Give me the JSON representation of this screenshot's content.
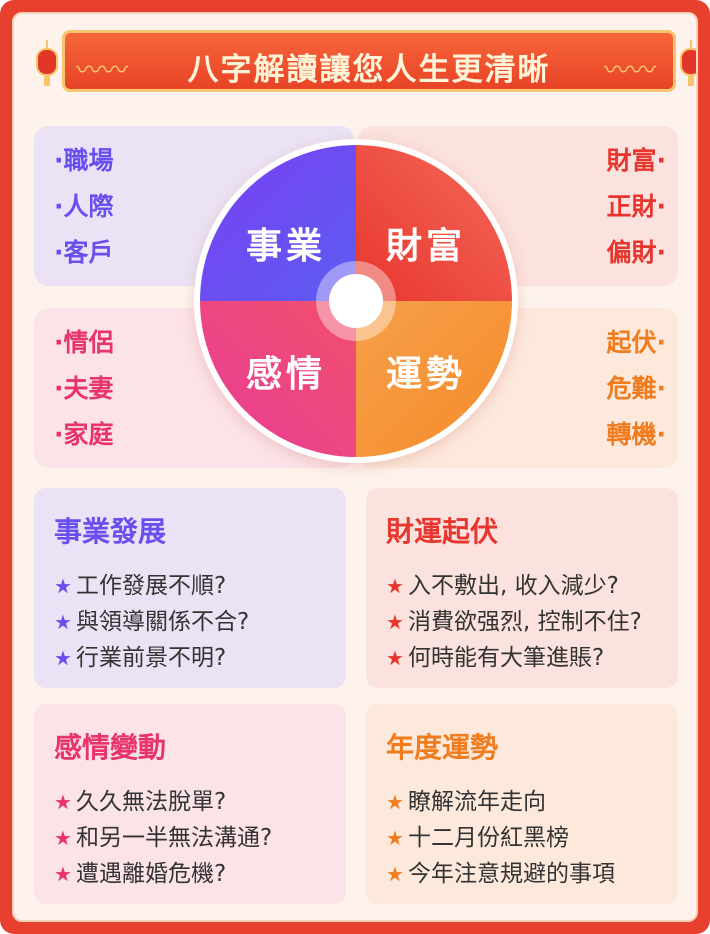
{
  "banner": {
    "title": "八字解讀讓您人生更清晰"
  },
  "left_top_list": [
    "·職場",
    "·人際",
    "·客戶"
  ],
  "right_top_list": [
    "財富·",
    "正財·",
    "偏財·"
  ],
  "left_bottom_list": [
    "·情侶",
    "·夫妻",
    "·家庭"
  ],
  "right_bottom_list": [
    "起伏·",
    "危難·",
    "轉機·"
  ],
  "wheel": {
    "q1": "事業",
    "q2": "財富",
    "q3": "感情",
    "q4": "運勢"
  },
  "cards": {
    "career": {
      "title": "事業發展",
      "items": [
        "工作發展不順?",
        "與領導關係不合?",
        "行業前景不明?"
      ]
    },
    "wealth": {
      "title": "財運起伏",
      "items": [
        "入不敷出, 收入減少?",
        "消費欲强烈, 控制不住?",
        "何時能有大筆進賬?"
      ]
    },
    "love": {
      "title": "感情變動",
      "items": [
        "久久無法脫單?",
        "和另一半無法溝通?",
        "遭遇離婚危機?"
      ]
    },
    "fortune": {
      "title": "年度運勢",
      "items": [
        "瞭解流年走向",
        "十二月份紅黑榜",
        "今年注意規避的事項"
      ]
    }
  },
  "colors": {
    "purple": "#6a4ff0",
    "red": "#e8362e",
    "pink": "#e8336b",
    "orange": "#f07c1e"
  },
  "icons": {
    "bullet": "star-icon"
  }
}
